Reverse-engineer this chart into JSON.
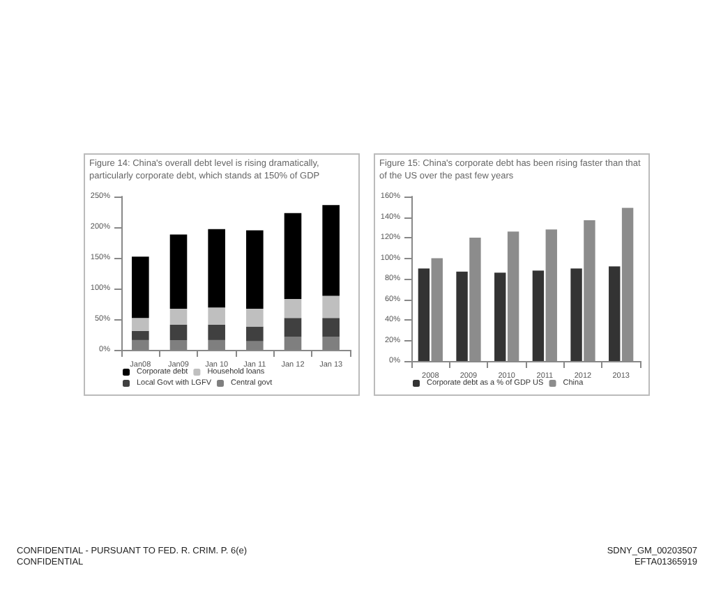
{
  "chart_data": [
    {
      "type": "bar",
      "title": "Figure 14: China's overall debt level is rising dramatically, particularly corporate debt, which stands at 150% of GDP",
      "categories": [
        "Jan08",
        "Jan09",
        "Jan 10",
        "Jan 11",
        "Jan 12",
        "Jan 13"
      ],
      "stacked": true,
      "series": [
        {
          "name": "Central govt",
          "color": "#7f7f7f",
          "values": [
            16,
            16,
            16,
            14,
            21,
            21
          ]
        },
        {
          "name": "Local Govt with LGFV",
          "color": "#404040",
          "values": [
            15,
            25,
            25,
            24,
            31,
            31
          ]
        },
        {
          "name": "Household loans",
          "color": "#bfbfbf",
          "values": [
            21,
            26,
            28,
            29,
            31,
            36
          ]
        },
        {
          "name": "Corporate debt",
          "color": "#000000",
          "values": [
            100,
            121,
            128,
            128,
            140,
            148
          ]
        }
      ],
      "ylim": [
        0,
        250
      ],
      "yticks": [
        {
          "value": 0,
          "label": "0%"
        },
        {
          "value": 50,
          "label": "50%"
        },
        {
          "value": 100,
          "label": "100%"
        },
        {
          "value": 150,
          "label": "150%"
        },
        {
          "value": 200,
          "label": "200%"
        },
        {
          "value": 250,
          "label": "250%"
        }
      ],
      "grid": false,
      "legend": "bottom",
      "annotations": [
        "CONFIDENTIAL - PURSUANT TO FED. R. CRIM. P. 6(e)",
        "CONFIDENTIAL",
        "SDNY_GM_00203507",
        "EFTA01365919"
      ]
    },
    {
      "type": "bar",
      "title": "Figure 15: China's corporate debt has been rising faster than that of the US over the past few years",
      "categories": [
        "2008",
        "2009",
        "2010",
        "2011",
        "2012",
        "2013"
      ],
      "series": [
        {
          "name": "Corporate debt as a % of GDP US",
          "color": "#333333",
          "values": [
            90,
            87,
            86,
            88,
            90,
            92
          ]
        },
        {
          "name": "China",
          "color": "#8c8c8c",
          "values": [
            100,
            120,
            126,
            128,
            137,
            149
          ]
        }
      ],
      "ylim": [
        0,
        160
      ],
      "yticks": [
        {
          "value": 0,
          "label": "0%"
        },
        {
          "value": 20,
          "label": "20%"
        },
        {
          "value": 40,
          "label": "40%"
        },
        {
          "value": 60,
          "label": "60%"
        },
        {
          "value": 80,
          "label": "80%"
        },
        {
          "value": 100,
          "label": "100%"
        },
        {
          "value": 120,
          "label": "120%"
        },
        {
          "value": 140,
          "label": "140%"
        },
        {
          "value": 160,
          "label": "160%"
        }
      ],
      "grid": false,
      "legend": "bottom"
    }
  ]
}
